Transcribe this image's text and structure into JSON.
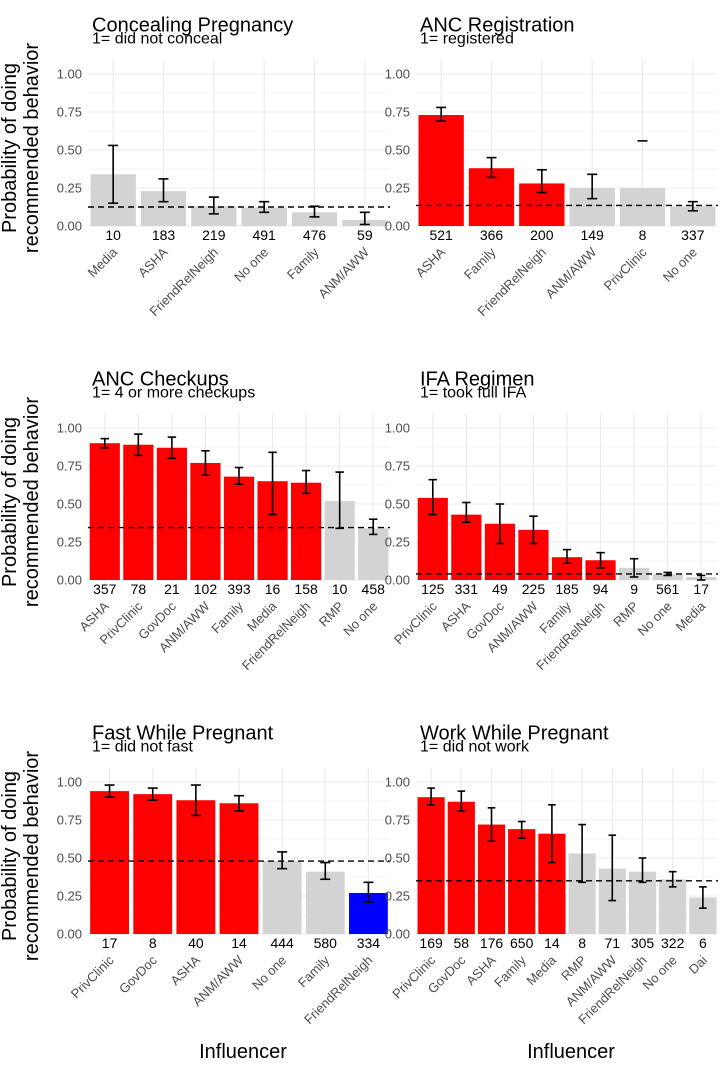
{
  "figure": {
    "ylabel_line1": "Probability of doing",
    "ylabel_line2": "recommended behavior",
    "xlabel": "Influencer"
  },
  "colors": {
    "significant_high": "#ff0000",
    "significant_low": "#0000ff",
    "not_significant": "#d3d3d3",
    "grid": "#ebebeb",
    "reference_line": "#000000"
  },
  "chart_data": [
    {
      "type": "bar",
      "title": "Concealing Pregnancy",
      "subtitle": "1= did not conceal",
      "categories": [
        "Media",
        "ASHA",
        "FriendRelNeigh",
        "No one",
        "Family",
        "ANM/AWW"
      ],
      "values": [
        0.34,
        0.23,
        0.13,
        0.12,
        0.09,
        0.04
      ],
      "err_low": [
        0.15,
        0.16,
        0.08,
        0.09,
        0.06,
        0.01
      ],
      "err_high": [
        0.53,
        0.31,
        0.19,
        0.16,
        0.13,
        0.09
      ],
      "n": [
        10,
        183,
        219,
        491,
        476,
        59
      ],
      "highlight": [
        "none",
        "none",
        "none",
        "none",
        "none",
        "none"
      ],
      "reference": 0.125,
      "ylim": [
        0,
        1
      ],
      "yticks": [
        "0.00",
        "0.25",
        "0.50",
        "0.75",
        "1.00"
      ]
    },
    {
      "type": "bar",
      "title": "ANC Registration",
      "subtitle": "1= registered",
      "categories": [
        "ASHA",
        "Family",
        "FriendRelNeigh",
        "ANM/AWW",
        "PrivClinic",
        "No one"
      ],
      "values": [
        0.73,
        0.38,
        0.28,
        0.25,
        0.25,
        0.13
      ],
      "err_low": [
        0.69,
        0.32,
        0.22,
        0.18,
        null,
        0.1
      ],
      "err_high": [
        0.78,
        0.45,
        0.37,
        0.34,
        0.56,
        0.16
      ],
      "n": [
        521,
        366,
        200,
        149,
        8,
        337
      ],
      "highlight": [
        "high",
        "high",
        "high",
        "none",
        "none",
        "none"
      ],
      "reference": 0.135,
      "ylim": [
        0,
        1
      ],
      "yticks": [
        "0.00",
        "0.25",
        "0.50",
        "0.75",
        "1.00"
      ]
    },
    {
      "type": "bar",
      "title": "ANC Checkups",
      "subtitle": "1= 4 or more checkups",
      "categories": [
        "ASHA",
        "PrivClinic",
        "GovDoc",
        "ANM/AWW",
        "Family",
        "Media",
        "FriendRelNeigh",
        "RMP",
        "No one"
      ],
      "values": [
        0.9,
        0.89,
        0.87,
        0.77,
        0.68,
        0.65,
        0.64,
        0.52,
        0.34
      ],
      "err_low": [
        0.87,
        0.82,
        0.8,
        0.69,
        0.63,
        0.43,
        0.57,
        0.34,
        0.3
      ],
      "err_high": [
        0.93,
        0.96,
        0.94,
        0.85,
        0.74,
        0.84,
        0.72,
        0.71,
        0.4
      ],
      "n": [
        357,
        78,
        21,
        102,
        393,
        16,
        158,
        10,
        458
      ],
      "highlight": [
        "high",
        "high",
        "high",
        "high",
        "high",
        "high",
        "high",
        "none",
        "none"
      ],
      "reference": 0.345,
      "ylim": [
        0,
        1
      ],
      "yticks": [
        "0.00",
        "0.25",
        "0.50",
        "0.75",
        "1.00"
      ]
    },
    {
      "type": "bar",
      "title": "IFA Regimen",
      "subtitle": "1= took full IFA",
      "categories": [
        "PrivClinic",
        "ASHA",
        "GovDoc",
        "ANM/AWW",
        "Family",
        "FriendRelNeigh",
        "RMP",
        "No one",
        "Media"
      ],
      "values": [
        0.54,
        0.43,
        0.37,
        0.33,
        0.15,
        0.13,
        0.08,
        0.04,
        0.02
      ],
      "err_low": [
        0.43,
        0.38,
        0.24,
        0.24,
        0.11,
        0.08,
        0.02,
        0.03,
        0.0
      ],
      "err_high": [
        0.66,
        0.51,
        0.5,
        0.42,
        0.2,
        0.18,
        0.14,
        0.05,
        0.03
      ],
      "n": [
        125,
        331,
        49,
        225,
        185,
        94,
        9,
        561,
        17
      ],
      "highlight": [
        "high",
        "high",
        "high",
        "high",
        "high",
        "high",
        "none",
        "none",
        "none"
      ],
      "reference": 0.04,
      "ylim": [
        0,
        1
      ],
      "yticks": [
        "0.00",
        "0.25",
        "0.50",
        "0.75",
        "1.00"
      ]
    },
    {
      "type": "bar",
      "title": "Fast While Pregnant",
      "subtitle": "1= did not fast",
      "categories": [
        "PrivClinic",
        "GovDoc",
        "ASHA",
        "ANM/AWW",
        "No one",
        "Family",
        "FriendRelNeigh"
      ],
      "values": [
        0.94,
        0.92,
        0.88,
        0.86,
        0.48,
        0.41,
        0.27
      ],
      "err_low": [
        0.9,
        0.88,
        0.78,
        0.81,
        0.43,
        0.36,
        0.21
      ],
      "err_high": [
        0.98,
        0.96,
        0.98,
        0.91,
        0.54,
        0.47,
        0.34
      ],
      "n": [
        17,
        8,
        40,
        14,
        444,
        580,
        334
      ],
      "highlight": [
        "high",
        "high",
        "high",
        "high",
        "none",
        "none",
        "low"
      ],
      "reference": 0.48,
      "ylim": [
        0,
        1
      ],
      "yticks": [
        "0.00",
        "0.25",
        "0.50",
        "0.75",
        "1.00"
      ]
    },
    {
      "type": "bar",
      "title": "Work While Pregnant",
      "subtitle": "1= did not work",
      "categories": [
        "PrivClinic",
        "GovDoc",
        "ASHA",
        "Family",
        "Media",
        "RMP",
        "ANM/AWW",
        "FriendRelNeigh",
        "No one",
        "Dai"
      ],
      "values": [
        0.9,
        0.87,
        0.72,
        0.69,
        0.66,
        0.53,
        0.43,
        0.41,
        0.36,
        0.24
      ],
      "err_low": [
        0.85,
        0.81,
        0.61,
        0.63,
        0.47,
        0.34,
        0.22,
        0.34,
        0.31,
        0.17
      ],
      "err_high": [
        0.96,
        0.94,
        0.83,
        0.74,
        0.85,
        0.72,
        0.65,
        0.5,
        0.41,
        0.31
      ],
      "n": [
        169,
        58,
        176,
        650,
        14,
        8,
        71,
        305,
        322,
        6
      ],
      "highlight": [
        "high",
        "high",
        "high",
        "high",
        "high",
        "none",
        "none",
        "none",
        "none",
        "none"
      ],
      "reference": 0.35,
      "ylim": [
        0,
        1
      ],
      "yticks": [
        "0.00",
        "0.25",
        "0.50",
        "0.75",
        "1.00"
      ]
    }
  ]
}
